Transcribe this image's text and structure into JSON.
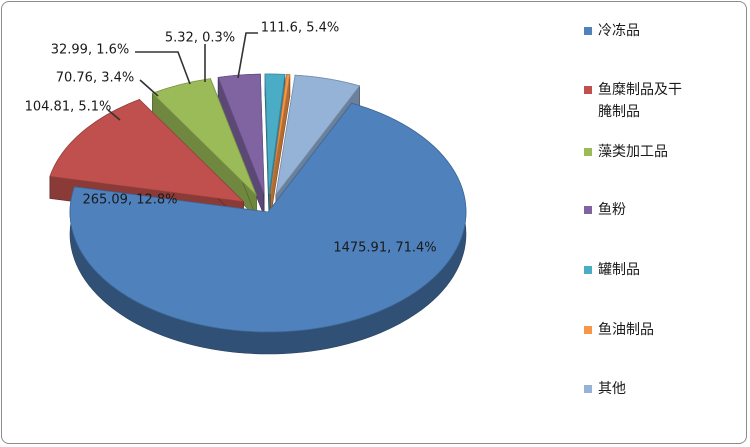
{
  "chart_data": {
    "type": "pie",
    "style": "3d-exploded",
    "title": "",
    "slices": [
      {
        "name": "冷冻品",
        "value": 1475.91,
        "percent": 71.4,
        "label": "1475.91, 71.4%",
        "color": "#4f81bd"
      },
      {
        "name": "鱼糜制品及干腌制品",
        "value": 265.09,
        "percent": 12.8,
        "label": "265.09, 12.8%",
        "color": "#c0504d"
      },
      {
        "name": "藻类加工品",
        "value": 104.81,
        "percent": 5.1,
        "label": "104.81, 5.1%",
        "color": "#9bbb59"
      },
      {
        "name": "鱼粉",
        "value": 70.76,
        "percent": 3.4,
        "label": "70.76, 3.4%",
        "color": "#8064a2"
      },
      {
        "name": "罐制品",
        "value": 32.99,
        "percent": 1.6,
        "label": "32.99, 1.6%",
        "color": "#4bacc6"
      },
      {
        "name": "鱼油制品",
        "value": 5.32,
        "percent": 0.3,
        "label": "5.32, 0.3%",
        "color": "#f79646"
      },
      {
        "name": "其他",
        "value": 111.6,
        "percent": 5.4,
        "label": "111.6, 5.4%",
        "color": "#95b3d7"
      }
    ],
    "legend": {
      "position": "right",
      "entries": [
        {
          "lines": [
            "冷冻品"
          ]
        },
        {
          "lines": [
            "鱼糜制品及干",
            "腌制品"
          ]
        },
        {
          "lines": [
            "藻类加工品"
          ]
        },
        {
          "lines": [
            "鱼粉"
          ]
        },
        {
          "lines": [
            "罐制品"
          ]
        },
        {
          "lines": [
            "鱼油制品"
          ]
        },
        {
          "lines": [
            "其他"
          ]
        }
      ]
    }
  }
}
